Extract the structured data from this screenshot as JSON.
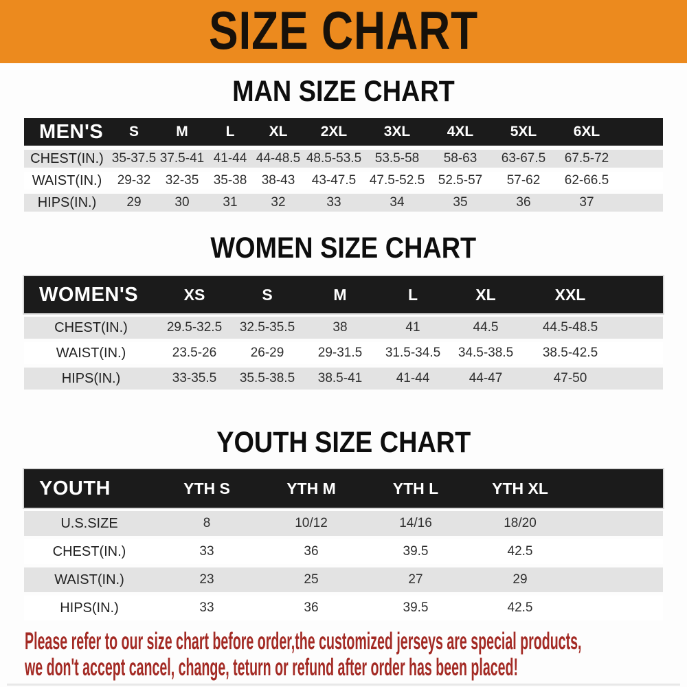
{
  "banner": {
    "title": "SIZE CHART",
    "background_color": "#EC8A1E"
  },
  "tables": [
    {
      "id": "men",
      "title": "MAN SIZE CHART",
      "header_label": "MEN'S",
      "sizes": [
        "S",
        "M",
        "L",
        "XL",
        "2XL",
        "3XL",
        "4XL",
        "5XL",
        "6XL"
      ],
      "rows": [
        {
          "label": "CHEST(IN.)",
          "values": [
            "35-37.5",
            "37.5-41",
            "41-44",
            "44-48.5",
            "48.5-53.5",
            "53.5-58",
            "58-63",
            "63-67.5",
            "67.5-72"
          ]
        },
        {
          "label": "WAIST(IN.)",
          "values": [
            "29-32",
            "32-35",
            "35-38",
            "38-43",
            "43-47.5",
            "47.5-52.5",
            "52.5-57",
            "57-62",
            "62-66.5"
          ]
        },
        {
          "label": "HIPS(IN.)",
          "values": [
            "29",
            "30",
            "31",
            "32",
            "33",
            "34",
            "35",
            "36",
            "37"
          ]
        }
      ]
    },
    {
      "id": "women",
      "title": "WOMEN SIZE CHART",
      "header_label": "WOMEN'S",
      "sizes": [
        "XS",
        "S",
        "M",
        "L",
        "XL",
        "XXL"
      ],
      "rows": [
        {
          "label": "CHEST(IN.)",
          "values": [
            "29.5-32.5",
            "32.5-35.5",
            "38",
            "41",
            "44.5",
            "44.5-48.5"
          ]
        },
        {
          "label": "WAIST(IN.)",
          "values": [
            "23.5-26",
            "26-29",
            "29-31.5",
            "31.5-34.5",
            "34.5-38.5",
            "38.5-42.5"
          ]
        },
        {
          "label": "HIPS(IN.)",
          "values": [
            "33-35.5",
            "35.5-38.5",
            "38.5-41",
            "41-44",
            "44-47",
            "47-50"
          ]
        }
      ]
    },
    {
      "id": "youth",
      "title": "YOUTH SIZE CHART",
      "header_label": "YOUTH",
      "sizes": [
        "YTH S",
        "YTH M",
        "YTH L",
        "YTH XL"
      ],
      "rows": [
        {
          "label": "U.S.SIZE",
          "values": [
            "8",
            "10/12",
            "14/16",
            "18/20"
          ]
        },
        {
          "label": "CHEST(IN.)",
          "values": [
            "33",
            "36",
            "39.5",
            "42.5"
          ]
        },
        {
          "label": "WAIST(IN.)",
          "values": [
            "23",
            "25",
            "27",
            "29"
          ]
        },
        {
          "label": "HIPS(IN.)",
          "values": [
            "33",
            "36",
            "39.5",
            "42.5"
          ]
        }
      ]
    }
  ],
  "footer": {
    "line1": "Please refer to our size chart before order,the customized jerseys are special products,",
    "line2": "we don't accept cancel, change, teturn or refund after order has been placed!",
    "text_color": "#A32A24"
  }
}
